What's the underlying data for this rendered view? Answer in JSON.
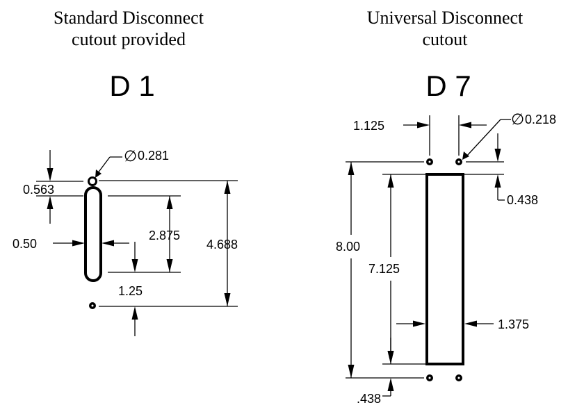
{
  "d1": {
    "heading_line1": "Standard Disconnect",
    "heading_line2": "cutout provided",
    "code": "D 1",
    "diameter_symbol": "∅",
    "diameter": "0.281",
    "dim_top_offset": "0.563",
    "dim_slot_width": "0.50",
    "dim_slot_length": "2.875",
    "dim_hole_spacing": "4.688",
    "dim_bottom_offset": "1.25"
  },
  "d7": {
    "heading_line1": "Universal Disconnect",
    "heading_line2": "cutout",
    "code": "D 7",
    "diameter_symbol": "∅",
    "diameter": "0.218",
    "dim_hole_spacing": "1.125",
    "dim_top_offset": "0.438",
    "dim_overall_height": "8.00",
    "dim_cutout_height": "7.125",
    "dim_cutout_width": "1.375",
    "dim_bottom_offset": ".438"
  }
}
